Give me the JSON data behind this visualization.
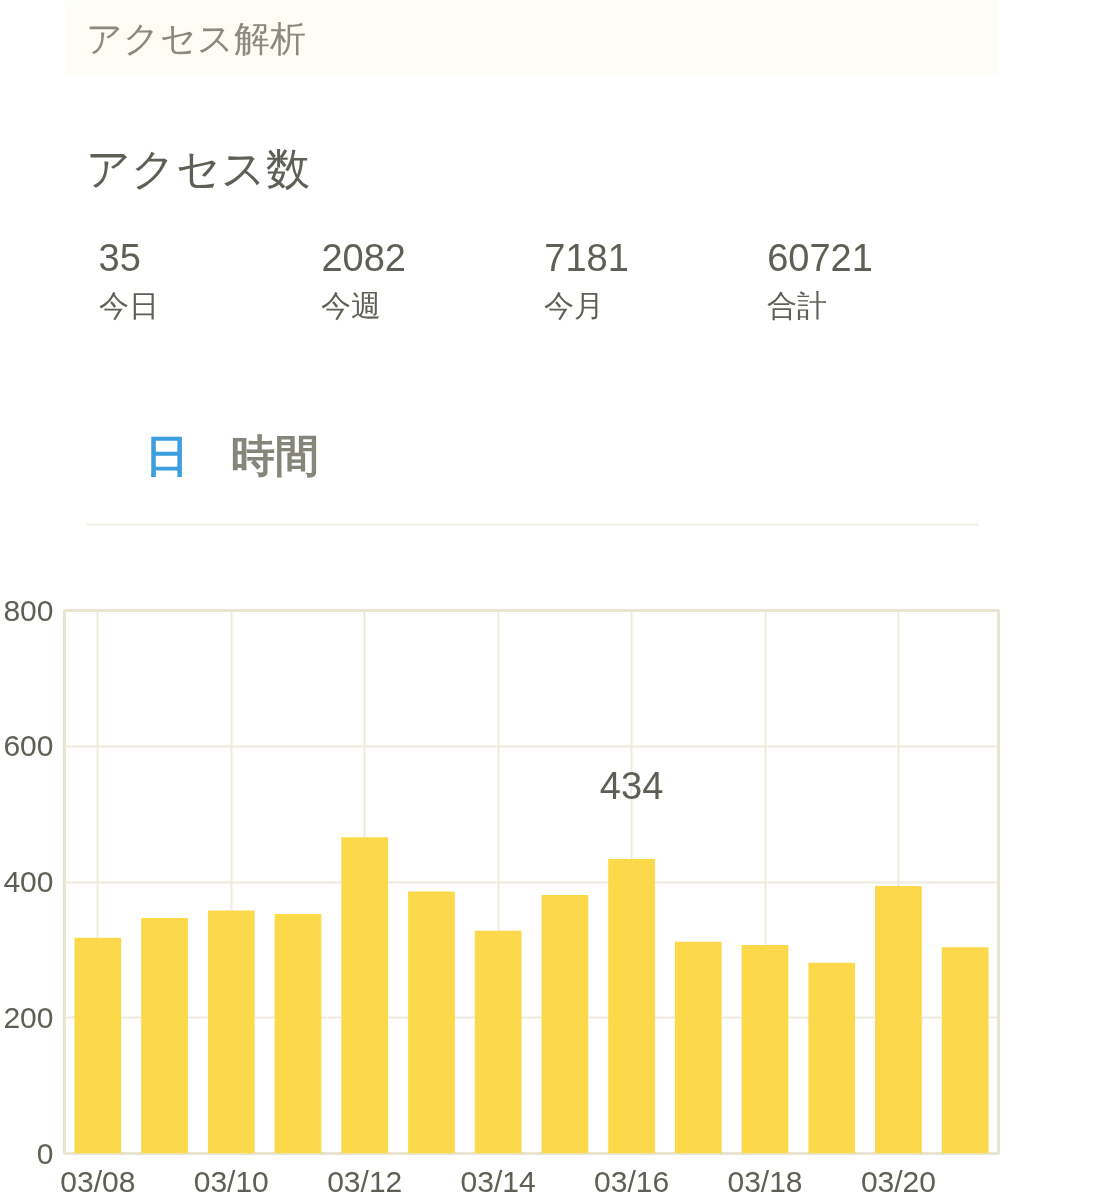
{
  "chart_data": {
    "type": "bar",
    "title": "アクセス解析",
    "subtitle": "アクセス数",
    "annotations": [
      "35",
      "今日",
      "2082",
      "今週",
      "7181",
      "今月",
      "60721",
      "合計",
      "日",
      "時間"
    ],
    "categories": [
      "03/08",
      null,
      "03/10",
      null,
      "03/12",
      null,
      "03/14",
      null,
      "03/16",
      null,
      "03/18",
      null,
      "03/20",
      null
    ],
    "values": [
      318,
      347,
      358,
      353,
      466,
      386,
      328,
      381,
      434,
      312,
      307,
      281,
      394,
      304
    ],
    "value_labels": [
      null,
      null,
      null,
      null,
      null,
      null,
      null,
      null,
      "434",
      null,
      null,
      null,
      null,
      null
    ],
    "color": "#fcd94a",
    "ylim": [
      0,
      800
    ],
    "yticks": [
      0,
      200,
      400,
      600,
      800
    ],
    "grid": true
  }
}
